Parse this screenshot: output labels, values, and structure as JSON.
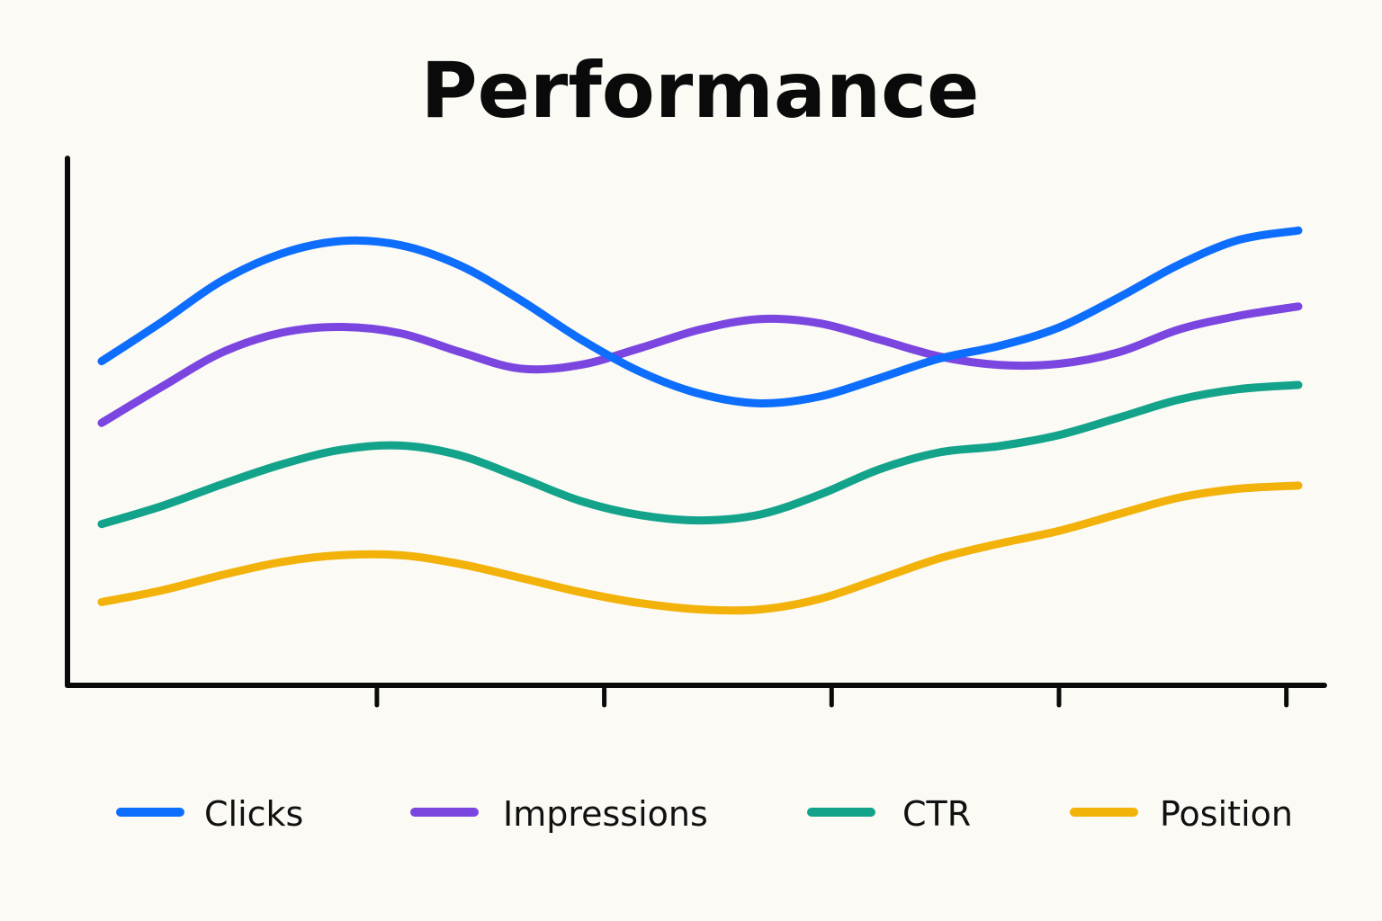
{
  "colors": {
    "background": "#fbfaf5",
    "axis": "#0a0a0a",
    "text": "#111111"
  },
  "chart_data": {
    "type": "line",
    "title": "Performance",
    "xlabel": "",
    "ylabel": "",
    "grid": false,
    "legend_position": "bottom",
    "x": [
      0,
      0.5,
      1,
      1.5,
      2,
      2.5,
      3,
      3.5,
      4,
      4.5,
      5,
      5.5,
      6,
      6.5,
      7,
      7.5,
      8,
      8.5,
      9,
      9.5,
      10
    ],
    "xticks": [
      2.3,
      4.2,
      6.1,
      8.0,
      9.9
    ],
    "ylim": [
      0,
      100
    ],
    "series": [
      {
        "name": "Clicks",
        "color": "#0d6efd",
        "values": [
          61.5,
          68.9,
          76.7,
          81.9,
          84.3,
          83.5,
          79.6,
          73.1,
          65.7,
          59.5,
          55.3,
          53.5,
          54.8,
          58.3,
          62.0,
          64.4,
          67.9,
          73.6,
          79.8,
          84.5,
          86.3
        ]
      },
      {
        "name": "Impressions",
        "color": "#7b46e0",
        "values": [
          49.8,
          56.6,
          63.1,
          66.9,
          68.0,
          66.8,
          63.2,
          60.1,
          60.8,
          64.0,
          67.5,
          69.5,
          68.7,
          65.6,
          62.4,
          60.8,
          61.0,
          63.2,
          67.5,
          70.1,
          71.9
        ]
      },
      {
        "name": "CTR",
        "color": "#13a38b",
        "values": [
          30.6,
          34.0,
          38.1,
          41.9,
          44.7,
          45.5,
          43.6,
          39.4,
          35.0,
          32.3,
          31.3,
          32.4,
          36.2,
          41.0,
          44.2,
          45.4,
          47.5,
          50.8,
          54.2,
          56.2,
          57.0
        ]
      },
      {
        "name": "Position",
        "color": "#f2b20a",
        "values": [
          15.8,
          18.0,
          20.9,
          23.4,
          24.7,
          24.7,
          23.0,
          20.4,
          17.7,
          15.6,
          14.4,
          14.4,
          16.4,
          20.2,
          24.1,
          26.9,
          29.3,
          32.5,
          35.6,
          37.3,
          37.9
        ]
      }
    ]
  }
}
